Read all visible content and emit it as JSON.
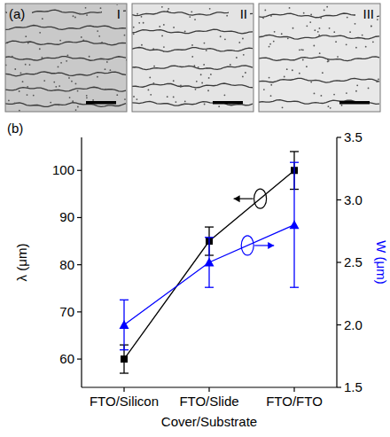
{
  "figure_a": {
    "label": "(a)",
    "images": [
      {
        "label": "I"
      },
      {
        "label": "II"
      },
      {
        "label": "III"
      }
    ]
  },
  "chart_data": {
    "type": "line",
    "label": "(b)",
    "x_label": "Cover/Substrate",
    "y_label": "λ (μm)",
    "y2_label": "W (μm)",
    "categories": [
      "FTO/Silicon",
      "FTO/Slide",
      "FTO/FTO"
    ],
    "ylim": [
      54,
      107
    ],
    "yticks": [
      60,
      70,
      80,
      90,
      100
    ],
    "y2lim": [
      1.5,
      3.5
    ],
    "y2ticks": [
      1.5,
      {
        "value": 2,
        "label": "2.0"
      },
      2.5,
      {
        "value": 3,
        "label": "3.0"
      },
      3.5
    ],
    "grid": false,
    "series": [
      {
        "color": "#000000",
        "marker": "square",
        "values": [
          60,
          85,
          100
        ],
        "errors": [
          3,
          3,
          4
        ]
      },
      {
        "color": "#0000ff",
        "marker": "triangle",
        "axis": "y2",
        "values": [
          2.0,
          2.5,
          2.8
        ],
        "errors": [
          0.2,
          0.2,
          0.5
        ]
      }
    ]
  }
}
